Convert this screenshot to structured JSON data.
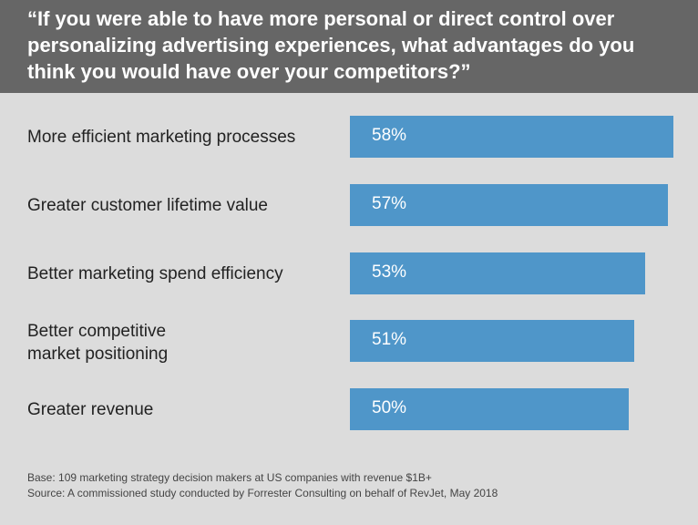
{
  "chart_data": {
    "type": "bar",
    "orientation": "horizontal",
    "title": "“If you were able to have more personal or direct control over personalizing advertising experiences, what advantages do you think you would have over your competitors?”",
    "categories": [
      "More efficient marketing processes",
      "Greater customer lifetime value",
      "Better marketing spend efficiency",
      "Better competitive market positioning",
      "Greater revenue"
    ],
    "values": [
      58,
      57,
      53,
      51,
      50
    ],
    "value_labels": [
      "58%",
      "57%",
      "53%",
      "51%",
      "50%"
    ],
    "xlim": [
      0,
      58
    ],
    "grid": false,
    "bar_color": "#4f96c9",
    "header_color": "#666666",
    "background_color": "#dcdcdc"
  },
  "notes": {
    "base": "Base: 109 marketing strategy decision makers at US companies with revenue $1B+",
    "source": "Source: A commissioned study conducted by Forrester Consulting on behalf of RevJet, May 2018"
  }
}
